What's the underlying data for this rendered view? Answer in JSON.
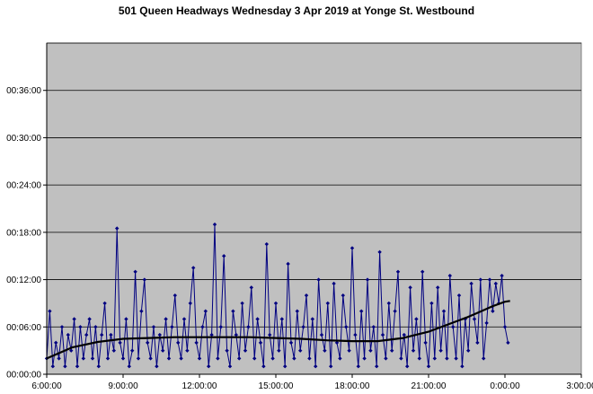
{
  "chart_data": {
    "type": "line",
    "title": "501 Queen Headways Wednesday 3 Apr 2019 at Yonge St. Westbound",
    "x_ticks": [
      "6:00:00",
      "9:00:00",
      "12:00:00",
      "15:00:00",
      "18:00:00",
      "21:00:00",
      "0:00:00",
      "3:00:00"
    ],
    "y_ticks": [
      "00:00:00",
      "00:06:00",
      "00:12:00",
      "00:18:00",
      "00:24:00",
      "00:30:00",
      "00:36:00"
    ],
    "x_unit": "hours after 6:00:00",
    "y_unit": "minutes",
    "xlim": [
      0,
      21
    ],
    "ylim": [
      0,
      42
    ],
    "grid": true,
    "series": [
      {
        "color": "#000080",
        "x": [
          0.0,
          0.12,
          0.24,
          0.36,
          0.48,
          0.6,
          0.72,
          0.84,
          0.96,
          1.08,
          1.2,
          1.32,
          1.44,
          1.56,
          1.68,
          1.8,
          1.92,
          2.04,
          2.16,
          2.28,
          2.4,
          2.52,
          2.64,
          2.76,
          2.88,
          3.0,
          3.12,
          3.24,
          3.36,
          3.48,
          3.6,
          3.72,
          3.84,
          3.96,
          4.08,
          4.2,
          4.32,
          4.44,
          4.56,
          4.68,
          4.8,
          4.92,
          5.04,
          5.16,
          5.28,
          5.4,
          5.52,
          5.64,
          5.76,
          5.88,
          6.0,
          6.12,
          6.24,
          6.36,
          6.48,
          6.6,
          6.72,
          6.84,
          6.96,
          7.08,
          7.2,
          7.32,
          7.44,
          7.56,
          7.68,
          7.8,
          7.92,
          8.04,
          8.16,
          8.28,
          8.4,
          8.52,
          8.64,
          8.76,
          8.88,
          9.0,
          9.12,
          9.24,
          9.36,
          9.48,
          9.6,
          9.72,
          9.84,
          9.96,
          10.08,
          10.2,
          10.32,
          10.44,
          10.56,
          10.68,
          10.8,
          10.92,
          11.04,
          11.16,
          11.28,
          11.4,
          11.52,
          11.64,
          11.76,
          11.88,
          12.0,
          12.12,
          12.24,
          12.36,
          12.48,
          12.6,
          12.72,
          12.84,
          12.96,
          13.08,
          13.2,
          13.32,
          13.44,
          13.56,
          13.68,
          13.8,
          13.92,
          14.04,
          14.16,
          14.28,
          14.4,
          14.52,
          14.64,
          14.76,
          14.88,
          15.0,
          15.12,
          15.24,
          15.36,
          15.48,
          15.6,
          15.72,
          15.84,
          15.96,
          16.08,
          16.2,
          16.32,
          16.44,
          16.56,
          16.68,
          16.8,
          16.92,
          17.04,
          17.16,
          17.28,
          17.4,
          17.52,
          17.64,
          17.76,
          17.88,
          18.0,
          18.12
        ],
        "y": [
          2,
          8,
          1,
          4,
          2,
          6,
          1,
          5,
          3,
          7,
          1,
          6,
          2,
          5,
          7,
          2,
          6,
          1,
          5,
          9,
          2,
          5,
          3,
          18.5,
          4,
          2,
          7,
          1,
          3,
          13,
          2,
          8,
          12,
          4,
          2,
          6,
          1,
          5,
          3,
          7,
          2,
          6,
          10,
          4,
          2,
          7,
          3,
          9,
          13.5,
          4,
          2,
          6,
          8,
          1,
          5,
          19,
          2,
          6,
          15,
          3,
          1,
          8,
          5,
          2,
          9,
          3,
          6,
          11,
          2,
          7,
          4,
          1,
          16.5,
          5,
          2,
          9,
          3,
          7,
          1,
          14,
          4,
          2,
          8,
          3,
          6,
          10,
          2,
          7,
          1,
          12,
          5,
          3,
          9,
          1,
          11.5,
          4,
          2,
          10,
          6,
          3,
          16,
          5,
          1,
          8,
          2,
          12,
          3,
          6,
          1,
          15.5,
          5,
          2,
          9,
          3,
          8,
          13,
          2,
          5,
          1,
          11,
          3,
          7,
          2,
          13,
          4,
          1,
          9,
          2,
          11,
          3,
          8,
          2,
          12.5,
          6,
          2,
          10,
          1,
          7,
          3,
          11.5,
          7,
          4,
          12,
          2,
          6.5,
          12,
          8,
          11.5,
          9,
          12.5,
          6,
          4
        ]
      },
      {
        "name": "",
        "color": "#000000",
        "x": [
          0,
          1,
          2,
          3,
          4,
          5,
          6,
          7,
          8,
          9,
          10,
          11,
          12,
          13,
          14,
          15,
          16,
          16.5,
          17,
          17.5,
          18,
          18.2
        ],
        "y": [
          2.0,
          3.4,
          4.1,
          4.5,
          4.6,
          4.7,
          4.7,
          4.7,
          4.7,
          4.6,
          4.5,
          4.3,
          4.2,
          4.2,
          4.6,
          5.4,
          6.6,
          7.2,
          7.9,
          8.6,
          9.2,
          9.3
        ]
      }
    ]
  }
}
